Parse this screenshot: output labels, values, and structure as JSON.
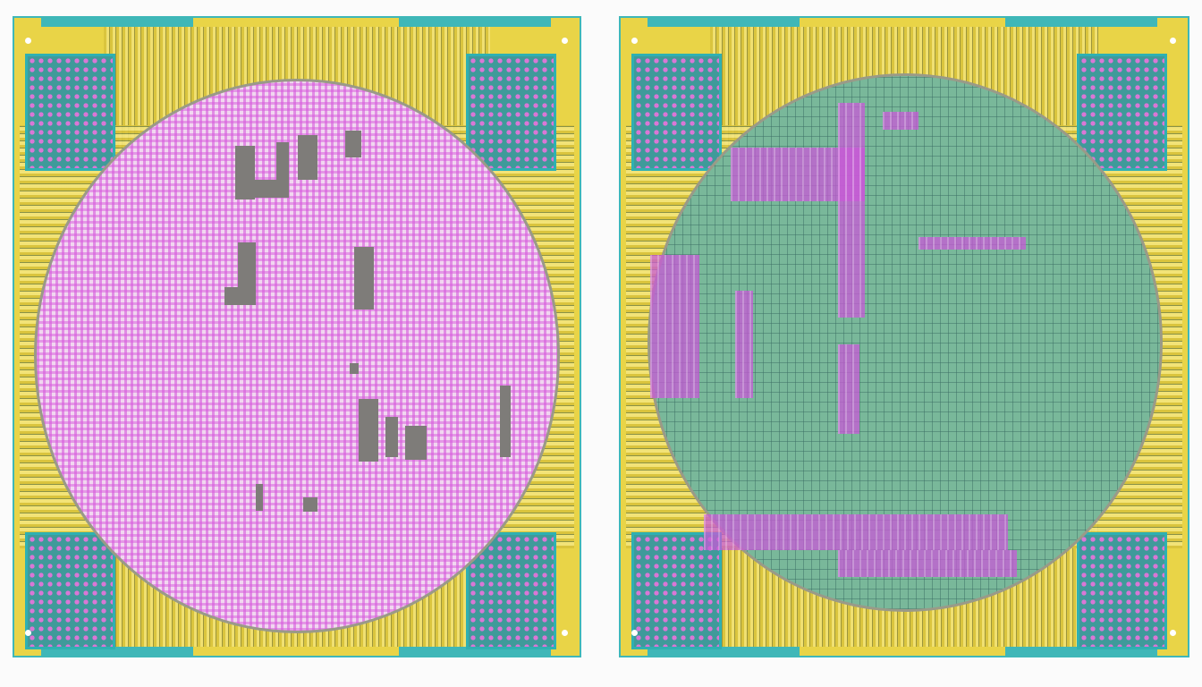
{
  "panels": [
    {
      "name": "left-chip",
      "die_color": "#f1d7f0",
      "accent": "#d65adc"
    },
    {
      "name": "right-chip",
      "die_color": "#79b89a",
      "accent": "#c85ad7"
    }
  ],
  "colors": {
    "substrate": "#e9d447",
    "border": "#3fb7b8",
    "background": "#fbfbfb"
  }
}
